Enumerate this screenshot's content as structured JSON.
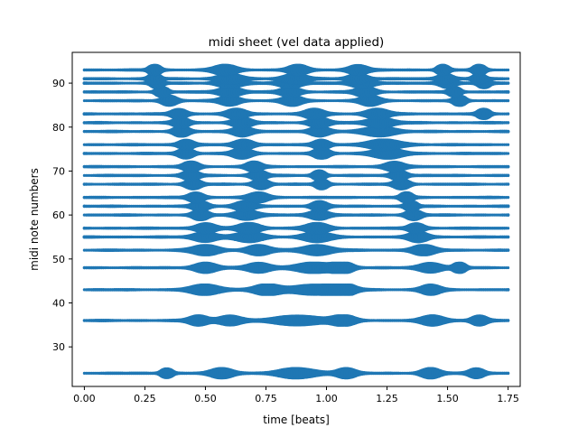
{
  "chart_data": {
    "type": "scatter",
    "title": "midi sheet (vel data applied)",
    "xlabel": "time [beats]",
    "ylabel": "midi note numbers",
    "xlim": [
      -0.05,
      1.8
    ],
    "ylim": [
      21,
      97
    ],
    "xticks": [
      "0.00",
      "0.25",
      "0.50",
      "0.75",
      "1.00",
      "1.25",
      "1.50",
      "1.75"
    ],
    "yticks": [
      "30",
      "40",
      "50",
      "60",
      "70",
      "80",
      "90"
    ],
    "grid": false,
    "color": "#1f77b4",
    "time_range": [
      0.0,
      1.75
    ],
    "time_step": 0.0078125,
    "notes": [
      24,
      36,
      43,
      48,
      52,
      55,
      57,
      60,
      62,
      64,
      67,
      69,
      71,
      74,
      76,
      79,
      81,
      83,
      86,
      88,
      90,
      91,
      93
    ],
    "velocity_hotspots": [
      {
        "note": 24,
        "centers": [
          0.34,
          0.57,
          0.88,
          1.08,
          1.43,
          1.62
        ],
        "widths": [
          0.03,
          0.06,
          0.1,
          0.05,
          0.05,
          0.04
        ]
      },
      {
        "note": 36,
        "centers": [
          0.47,
          0.6,
          0.88,
          1.07,
          1.44,
          1.63
        ],
        "widths": [
          0.05,
          0.06,
          0.12,
          0.06,
          0.06,
          0.04
        ]
      },
      {
        "note": 43,
        "centers": [
          0.5,
          0.75,
          0.95,
          1.07,
          1.43
        ],
        "widths": [
          0.08,
          0.07,
          0.12,
          0.06,
          0.05
        ]
      },
      {
        "note": 48,
        "centers": [
          0.5,
          0.72,
          0.95,
          1.07,
          1.43,
          1.55
        ],
        "widths": [
          0.06,
          0.06,
          0.1,
          0.05,
          0.06,
          0.03
        ]
      },
      {
        "note": 52,
        "centers": [
          0.5,
          0.72,
          0.96,
          1.4
        ],
        "widths": [
          0.07,
          0.06,
          0.08,
          0.06
        ]
      },
      {
        "note": 55,
        "centers": [
          0.5,
          0.68,
          0.96,
          1.38
        ],
        "widths": [
          0.06,
          0.07,
          0.07,
          0.05
        ]
      },
      {
        "note": 57,
        "centers": [
          0.5,
          0.68,
          0.96,
          1.37
        ],
        "widths": [
          0.05,
          0.06,
          0.06,
          0.04
        ]
      },
      {
        "note": 60,
        "centers": [
          0.48,
          0.67,
          0.97,
          1.36
        ],
        "widths": [
          0.04,
          0.06,
          0.05,
          0.04
        ]
      },
      {
        "note": 62,
        "centers": [
          0.48,
          0.66,
          0.97,
          1.35
        ],
        "widths": [
          0.04,
          0.05,
          0.04,
          0.03
        ]
      },
      {
        "note": 64,
        "centers": [
          0.46,
          0.72,
          1.33
        ],
        "widths": [
          0.04,
          0.05,
          0.03
        ]
      },
      {
        "note": 67,
        "centers": [
          0.45,
          0.73,
          0.98,
          1.31
        ],
        "widths": [
          0.04,
          0.04,
          0.03,
          0.04
        ]
      },
      {
        "note": 69,
        "centers": [
          0.44,
          0.72,
          0.97,
          1.3
        ],
        "widths": [
          0.04,
          0.04,
          0.03,
          0.04
        ]
      },
      {
        "note": 71,
        "centers": [
          0.44,
          0.7,
          1.28
        ],
        "widths": [
          0.04,
          0.04,
          0.05
        ]
      },
      {
        "note": 74,
        "centers": [
          0.42,
          0.65,
          0.98,
          1.25
        ],
        "widths": [
          0.04,
          0.05,
          0.04,
          0.08
        ]
      },
      {
        "note": 76,
        "centers": [
          0.42,
          0.66,
          0.98,
          1.24
        ],
        "widths": [
          0.04,
          0.05,
          0.04,
          0.09
        ]
      },
      {
        "note": 79,
        "centers": [
          0.4,
          0.65,
          0.97,
          1.22
        ],
        "widths": [
          0.04,
          0.05,
          0.05,
          0.08
        ]
      },
      {
        "note": 81,
        "centers": [
          0.4,
          0.65,
          0.97,
          1.22
        ],
        "widths": [
          0.04,
          0.05,
          0.05,
          0.07
        ]
      },
      {
        "note": 83,
        "centers": [
          0.39,
          0.63,
          0.95,
          1.21,
          1.65
        ],
        "widths": [
          0.04,
          0.05,
          0.05,
          0.06,
          0.03
        ]
      },
      {
        "note": 86,
        "centers": [
          0.35,
          0.6,
          0.86,
          1.18,
          1.55
        ],
        "widths": [
          0.04,
          0.05,
          0.05,
          0.05,
          0.03
        ]
      },
      {
        "note": 88,
        "centers": [
          0.32,
          0.6,
          0.85,
          1.16,
          1.53
        ],
        "widths": [
          0.03,
          0.06,
          0.05,
          0.05,
          0.03
        ]
      },
      {
        "note": 90,
        "centers": [
          0.3,
          0.6,
          0.85,
          1.15,
          1.5,
          1.65
        ],
        "widths": [
          0.03,
          0.06,
          0.06,
          0.06,
          0.04,
          0.03
        ]
      },
      {
        "note": 91,
        "centers": [
          0.29,
          0.6,
          0.87,
          1.13,
          1.49,
          1.63
        ],
        "widths": [
          0.03,
          0.06,
          0.06,
          0.05,
          0.04,
          0.03
        ]
      },
      {
        "note": 93,
        "centers": [
          0.29,
          0.58,
          0.88,
          1.13,
          1.48,
          1.63
        ],
        "widths": [
          0.03,
          0.06,
          0.05,
          0.05,
          0.03,
          0.03
        ]
      }
    ]
  }
}
